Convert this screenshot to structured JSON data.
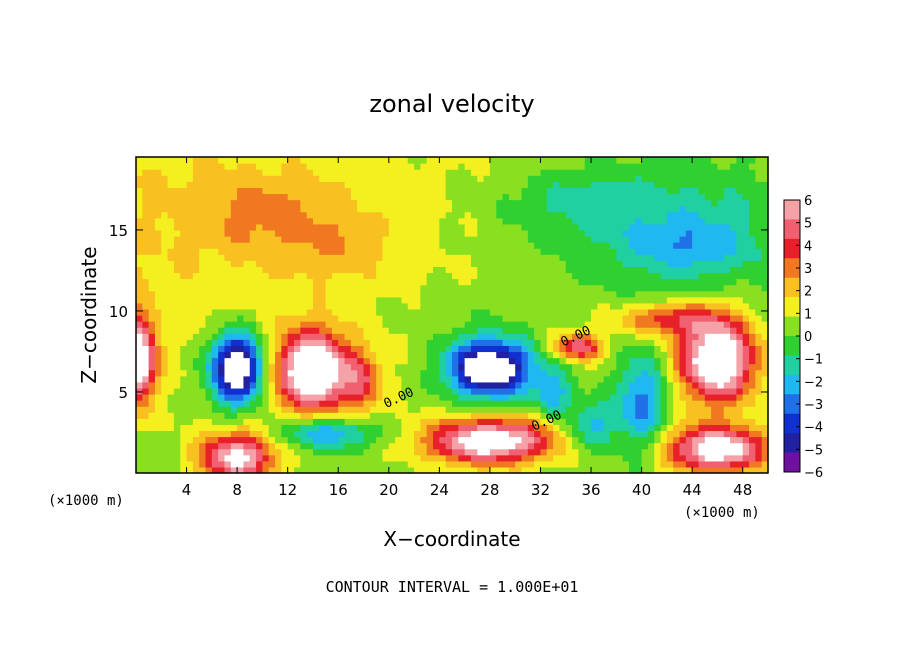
{
  "chart_data": {
    "type": "heatmap",
    "title": "zonal velocity",
    "xlabel": "X−coordinate",
    "ylabel": "Z−coordinate",
    "x_unit_left": "(×1000 m)",
    "x_unit_right": "(×1000 m)",
    "xlim": [
      0,
      50
    ],
    "ylim": [
      0,
      19.5
    ],
    "x_ticks": [
      4,
      8,
      12,
      16,
      20,
      24,
      28,
      32,
      36,
      40,
      44,
      48
    ],
    "x_tick_labels": [
      "4",
      "8",
      "12",
      "16",
      "20",
      "24",
      "28",
      "32",
      "36",
      "40",
      "44",
      "48"
    ],
    "y_ticks": [
      5,
      10,
      15
    ],
    "y_tick_labels": [
      "5",
      "10",
      "15"
    ],
    "colorbar": {
      "levels": [
        6,
        5,
        4,
        3,
        2,
        1,
        0,
        -1,
        -2,
        -3,
        -4,
        -5,
        -6
      ],
      "labels": [
        "6",
        "5",
        "4",
        "3",
        "2",
        "1",
        "0",
        "−1",
        "−2",
        "−3",
        "−4",
        "−5",
        "−6"
      ],
      "colors": [
        "#f4a2a8",
        "#f06070",
        "#e8202a",
        "#f07820",
        "#f8c020",
        "#f4f020",
        "#88e020",
        "#30d030",
        "#20d0a0",
        "#20b8f0",
        "#2070e8",
        "#1030d0",
        "#2020a0",
        "#7010a0"
      ]
    },
    "contour_labels": [
      {
        "text": "0.00",
        "x": 19.8,
        "y": 4.0
      },
      {
        "text": "0.00",
        "x": 31.5,
        "y": 2.6
      },
      {
        "text": "0.00",
        "x": 33.8,
        "y": 7.8
      }
    ],
    "annotation": "CONTOUR INTERVAL = 1.000E+01"
  }
}
